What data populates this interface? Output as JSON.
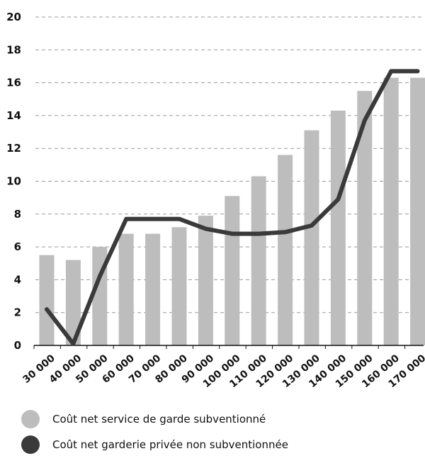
{
  "chart_data": {
    "type": "bar",
    "title": "",
    "xlabel": "",
    "ylabel": "",
    "ylim": [
      0,
      20
    ],
    "yticks": [
      0,
      2,
      4,
      6,
      8,
      10,
      12,
      14,
      16,
      18,
      20
    ],
    "grid": "horizontal dashed",
    "legend_position": "bottom",
    "categories": [
      "30 000",
      "40 000",
      "50 000",
      "60 000",
      "70 000",
      "80 000",
      "90 000",
      "100 000",
      "110 000",
      "120 000",
      "130 000",
      "140 000",
      "150 000",
      "160 000",
      "170 000"
    ],
    "series": [
      {
        "name": "Coût net service de garde subventionné",
        "type": "bar",
        "color": "#bdbdbd",
        "values": [
          5.5,
          5.2,
          6.0,
          6.8,
          6.8,
          7.2,
          7.9,
          9.1,
          10.3,
          11.6,
          13.1,
          14.3,
          15.5,
          16.3,
          16.3
        ]
      },
      {
        "name": "Coût net garderie privée non subventionnée",
        "type": "line",
        "color": "#3a3a3a",
        "points": [
          {
            "x": 30000,
            "y": 2.2
          },
          {
            "x": 40000,
            "y": 0.1
          },
          {
            "x": 50000,
            "y": 4.2
          },
          {
            "x": 60000,
            "y": 7.7
          },
          {
            "x": 70000,
            "y": 7.7
          },
          {
            "x": 80000,
            "y": 7.7
          },
          {
            "x": 90000,
            "y": 7.1
          },
          {
            "x": 100000,
            "y": 6.8
          },
          {
            "x": 110000,
            "y": 6.8
          },
          {
            "x": 120000,
            "y": 6.9
          },
          {
            "x": 130000,
            "y": 7.3
          },
          {
            "x": 140000,
            "y": 8.9
          },
          {
            "x": 150000,
            "y": 13.7
          },
          {
            "x": 160000,
            "y": 16.7
          },
          {
            "x": 170000,
            "y": 16.7
          }
        ]
      }
    ]
  }
}
